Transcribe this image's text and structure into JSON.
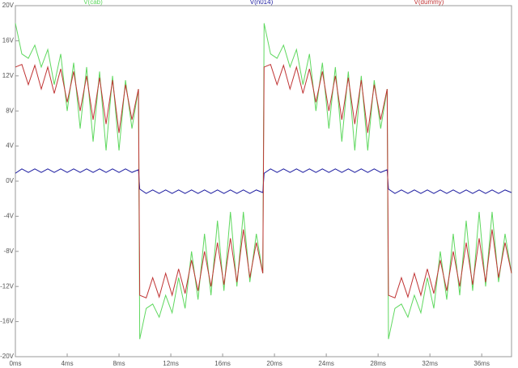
{
  "chart_data": {
    "type": "line",
    "xlim": [
      0,
      38.3
    ],
    "ylim": [
      -20,
      20
    ],
    "xticks": [
      {
        "value": 0,
        "label": "0ms"
      },
      {
        "value": 4,
        "label": "4ms"
      },
      {
        "value": 8,
        "label": "8ms"
      },
      {
        "value": 12,
        "label": "12ms"
      },
      {
        "value": 16,
        "label": "16ms"
      },
      {
        "value": 20,
        "label": "20ms"
      },
      {
        "value": 24,
        "label": "24ms"
      },
      {
        "value": 28,
        "label": "28ms"
      },
      {
        "value": 32,
        "label": "32ms"
      },
      {
        "value": 36,
        "label": "36ms"
      }
    ],
    "yticks": [
      {
        "value": -20,
        "label": "-20V"
      },
      {
        "value": -16,
        "label": "-16V"
      },
      {
        "value": -12,
        "label": "-12V"
      },
      {
        "value": -8,
        "label": "-8V"
      },
      {
        "value": -4,
        "label": "-4V"
      },
      {
        "value": 0,
        "label": "0V"
      },
      {
        "value": 4,
        "label": "4V"
      },
      {
        "value": 8,
        "label": "8V"
      },
      {
        "value": 12,
        "label": "12V"
      },
      {
        "value": 16,
        "label": "16V"
      },
      {
        "value": 20,
        "label": "20V"
      }
    ],
    "x": [
      0,
      0.5,
      1,
      1.5,
      2,
      2.5,
      3,
      3.5,
      4,
      4.5,
      5,
      5.5,
      6,
      6.5,
      7,
      7.5,
      8,
      8.5,
      9,
      9.5,
      9.6,
      10.1,
      10.6,
      11.1,
      11.6,
      12.1,
      12.6,
      13.1,
      13.6,
      14.1,
      14.6,
      15.1,
      15.6,
      16.1,
      16.6,
      17.1,
      17.6,
      18.1,
      18.6,
      19.1,
      19.2,
      19.7,
      20.2,
      20.7,
      21.2,
      21.7,
      22.2,
      22.7,
      23.2,
      23.7,
      24.2,
      24.7,
      25.2,
      25.7,
      26.2,
      26.7,
      27.2,
      27.7,
      28.2,
      28.7,
      28.8,
      29.3,
      29.8,
      30.3,
      30.8,
      31.3,
      31.8,
      32.3,
      32.8,
      33.3,
      33.8,
      34.3,
      34.8,
      35.3,
      35.8,
      36.3,
      36.8,
      37.3,
      37.8,
      38.3
    ],
    "series": [
      {
        "name": "V(cab)",
        "color": "#5fd85f",
        "values": [
          18,
          14.5,
          14,
          15.5,
          13,
          15,
          11,
          14.5,
          8,
          13.5,
          6,
          13,
          4.5,
          12.5,
          3.5,
          12,
          3.5,
          11.5,
          6,
          10.5,
          -18,
          -14.5,
          -14,
          -15.5,
          -13,
          -15,
          -11,
          -14.5,
          -8,
          -13.5,
          -6,
          -13,
          -4.5,
          -12.5,
          -3.5,
          -12,
          -3.5,
          -11.5,
          -6,
          -10.5,
          18,
          14.5,
          14,
          15.5,
          13,
          15,
          11,
          14.5,
          8,
          13.5,
          6,
          13,
          4.5,
          12.5,
          3.5,
          12,
          3.5,
          11.5,
          6,
          10.5,
          -18,
          -14.5,
          -14,
          -15.5,
          -13,
          -15,
          -11,
          -14.5,
          -8,
          -13.5,
          -6,
          -13,
          -4.5,
          -12.5,
          -3.5,
          -12,
          -3.5,
          -11.5,
          -6,
          -10.5
        ]
      },
      {
        "name": "V(n014)",
        "color": "#1c1ca0",
        "values": [
          0.9,
          1.4,
          1,
          1.4,
          1,
          1.4,
          1,
          1.4,
          1,
          1.4,
          1,
          1.4,
          1,
          1.4,
          1,
          1.4,
          1,
          1.4,
          1,
          1.3,
          -0.9,
          -1.4,
          -1,
          -1.4,
          -1,
          -1.4,
          -1,
          -1.4,
          -1,
          -1.4,
          -1,
          -1.4,
          -1,
          -1.4,
          -1,
          -1.4,
          -1,
          -1.4,
          -1,
          -1.3,
          0.9,
          1.4,
          1,
          1.4,
          1,
          1.4,
          1,
          1.4,
          1,
          1.4,
          1,
          1.4,
          1,
          1.4,
          1,
          1.4,
          1,
          1.4,
          1,
          1.3,
          -0.9,
          -1.4,
          -1,
          -1.4,
          -1,
          -1.4,
          -1,
          -1.4,
          -1,
          -1.4,
          -1,
          -1.4,
          -1,
          -1.4,
          -1,
          -1.4,
          -1,
          -1.4,
          -1,
          -1.3
        ]
      },
      {
        "name": "V(dummy)",
        "color": "#c03434",
        "values": [
          13,
          13.3,
          11,
          13.2,
          10.5,
          13,
          10,
          12.8,
          9,
          12.5,
          8,
          12,
          7,
          11.8,
          6.5,
          11.5,
          5.5,
          11,
          7,
          10.5,
          -13,
          -13.3,
          -11,
          -13.2,
          -10.5,
          -13,
          -10,
          -12.8,
          -9,
          -12.5,
          -8,
          -12,
          -7,
          -11.8,
          -6.5,
          -11.5,
          -5.5,
          -11,
          -7,
          -10.5,
          13,
          13.3,
          11,
          13.2,
          10.5,
          13,
          10,
          12.8,
          9,
          12.5,
          8,
          12,
          7,
          11.8,
          6.5,
          11.5,
          5.5,
          11,
          7,
          10.5,
          -13,
          -13.3,
          -11,
          -13.2,
          -10.5,
          -13,
          -10,
          -12.8,
          -9,
          -12.5,
          -8,
          -12,
          -7,
          -11.8,
          -6.5,
          -11.5,
          -5.5,
          -11,
          -7,
          -10.5
        ]
      }
    ]
  }
}
